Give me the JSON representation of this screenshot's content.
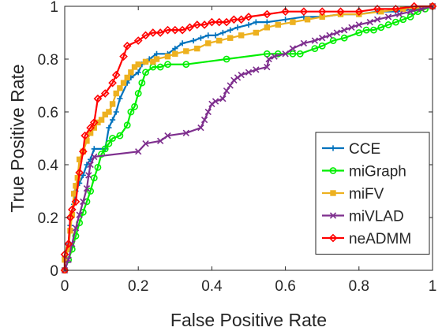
{
  "chart_data": {
    "type": "line",
    "title": "",
    "xlabel": "False Positive Rate",
    "ylabel": "True Positive Rate",
    "xlim": [
      0,
      1
    ],
    "ylim": [
      0,
      1
    ],
    "xticks": [
      "0",
      "0.2",
      "0.4",
      "0.6",
      "0.8",
      "1"
    ],
    "yticks": [
      "0",
      "0.2",
      "0.4",
      "0.6",
      "0.8",
      "1"
    ],
    "grid": false,
    "legend_position": "bottom-right",
    "series": [
      {
        "name": "CCE",
        "color": "#0072BD",
        "marker": "plus",
        "points": [
          [
            0,
            0
          ],
          [
            0,
            0.05
          ],
          [
            0.01,
            0.1
          ],
          [
            0.015,
            0.17
          ],
          [
            0.02,
            0.21
          ],
          [
            0.025,
            0.25
          ],
          [
            0.03,
            0.3
          ],
          [
            0.04,
            0.33
          ],
          [
            0.05,
            0.36
          ],
          [
            0.06,
            0.4
          ],
          [
            0.07,
            0.42
          ],
          [
            0.08,
            0.46
          ],
          [
            0.11,
            0.46
          ],
          [
            0.12,
            0.54
          ],
          [
            0.13,
            0.57
          ],
          [
            0.14,
            0.6
          ],
          [
            0.15,
            0.65
          ],
          [
            0.17,
            0.71
          ],
          [
            0.18,
            0.73
          ],
          [
            0.2,
            0.75
          ],
          [
            0.21,
            0.78
          ],
          [
            0.23,
            0.8
          ],
          [
            0.25,
            0.82
          ],
          [
            0.28,
            0.82
          ],
          [
            0.3,
            0.84
          ],
          [
            0.32,
            0.86
          ],
          [
            0.35,
            0.87
          ],
          [
            0.37,
            0.88
          ],
          [
            0.39,
            0.89
          ],
          [
            0.41,
            0.89
          ],
          [
            0.43,
            0.9
          ],
          [
            0.45,
            0.91
          ],
          [
            0.47,
            0.92
          ],
          [
            0.5,
            0.93
          ],
          [
            0.52,
            0.94
          ],
          [
            0.55,
            0.94
          ],
          [
            0.6,
            0.95
          ],
          [
            0.65,
            0.96
          ],
          [
            0.7,
            0.96
          ],
          [
            0.75,
            0.97
          ],
          [
            0.8,
            0.97
          ],
          [
            0.85,
            0.98
          ],
          [
            0.9,
            0.98
          ],
          [
            0.95,
            0.99
          ],
          [
            1,
            1
          ]
        ]
      },
      {
        "name": "miGraph",
        "color": "#00EE00",
        "marker": "circle",
        "points": [
          [
            0,
            0
          ],
          [
            0.01,
            0.04
          ],
          [
            0.02,
            0.08
          ],
          [
            0.03,
            0.13
          ],
          [
            0.04,
            0.18
          ],
          [
            0.05,
            0.22
          ],
          [
            0.06,
            0.26
          ],
          [
            0.07,
            0.3
          ],
          [
            0.08,
            0.35
          ],
          [
            0.09,
            0.39
          ],
          [
            0.1,
            0.44
          ],
          [
            0.11,
            0.46
          ],
          [
            0.12,
            0.48
          ],
          [
            0.13,
            0.5
          ],
          [
            0.15,
            0.51
          ],
          [
            0.17,
            0.55
          ],
          [
            0.18,
            0.6
          ],
          [
            0.19,
            0.62
          ],
          [
            0.2,
            0.67
          ],
          [
            0.21,
            0.71
          ],
          [
            0.22,
            0.75
          ],
          [
            0.24,
            0.77
          ],
          [
            0.26,
            0.77
          ],
          [
            0.28,
            0.78
          ],
          [
            0.33,
            0.78
          ],
          [
            0.44,
            0.8
          ],
          [
            0.55,
            0.82
          ],
          [
            0.58,
            0.82
          ],
          [
            0.62,
            0.82
          ],
          [
            0.64,
            0.82
          ],
          [
            0.68,
            0.84
          ],
          [
            0.7,
            0.85
          ],
          [
            0.73,
            0.87
          ],
          [
            0.76,
            0.88
          ],
          [
            0.8,
            0.9
          ],
          [
            0.82,
            0.91
          ],
          [
            0.84,
            0.91
          ],
          [
            0.86,
            0.92
          ],
          [
            0.88,
            0.93
          ],
          [
            0.9,
            0.94
          ],
          [
            0.92,
            0.95
          ],
          [
            0.94,
            0.96
          ],
          [
            0.96,
            0.98
          ],
          [
            0.98,
            0.99
          ],
          [
            1,
            1
          ]
        ]
      },
      {
        "name": "miFV",
        "color": "#EDB120",
        "marker": "square",
        "points": [
          [
            0,
            0
          ],
          [
            0,
            0.04
          ],
          [
            0.01,
            0.08
          ],
          [
            0.015,
            0.15
          ],
          [
            0.02,
            0.21
          ],
          [
            0.025,
            0.29
          ],
          [
            0.03,
            0.32
          ],
          [
            0.035,
            0.35
          ],
          [
            0.04,
            0.42
          ],
          [
            0.05,
            0.45
          ],
          [
            0.06,
            0.49
          ],
          [
            0.07,
            0.52
          ],
          [
            0.08,
            0.54
          ],
          [
            0.09,
            0.56
          ],
          [
            0.1,
            0.57
          ],
          [
            0.11,
            0.59
          ],
          [
            0.12,
            0.6
          ],
          [
            0.13,
            0.63
          ],
          [
            0.14,
            0.67
          ],
          [
            0.15,
            0.69
          ],
          [
            0.16,
            0.71
          ],
          [
            0.17,
            0.73
          ],
          [
            0.18,
            0.75
          ],
          [
            0.19,
            0.77
          ],
          [
            0.2,
            0.78
          ],
          [
            0.22,
            0.79
          ],
          [
            0.24,
            0.79
          ],
          [
            0.25,
            0.8
          ],
          [
            0.28,
            0.81
          ],
          [
            0.3,
            0.82
          ],
          [
            0.33,
            0.83
          ],
          [
            0.36,
            0.84
          ],
          [
            0.39,
            0.86
          ],
          [
            0.42,
            0.87
          ],
          [
            0.45,
            0.88
          ],
          [
            0.48,
            0.89
          ],
          [
            0.52,
            0.9
          ],
          [
            0.55,
            0.92
          ],
          [
            0.58,
            0.93
          ],
          [
            0.62,
            0.94
          ],
          [
            0.66,
            0.95
          ],
          [
            0.7,
            0.96
          ],
          [
            0.75,
            0.97
          ],
          [
            0.8,
            0.97
          ],
          [
            0.86,
            0.98
          ],
          [
            0.92,
            0.99
          ],
          [
            1,
            1
          ]
        ]
      },
      {
        "name": "miVLAD",
        "color": "#7E2F8E",
        "marker": "x",
        "points": [
          [
            0,
            0
          ],
          [
            0.01,
            0.04
          ],
          [
            0.02,
            0.1
          ],
          [
            0.03,
            0.16
          ],
          [
            0.04,
            0.21
          ],
          [
            0.05,
            0.26
          ],
          [
            0.06,
            0.31
          ],
          [
            0.065,
            0.36
          ],
          [
            0.07,
            0.4
          ],
          [
            0.08,
            0.43
          ],
          [
            0.2,
            0.45
          ],
          [
            0.22,
            0.48
          ],
          [
            0.26,
            0.49
          ],
          [
            0.28,
            0.51
          ],
          [
            0.33,
            0.52
          ],
          [
            0.37,
            0.54
          ],
          [
            0.38,
            0.57
          ],
          [
            0.39,
            0.6
          ],
          [
            0.4,
            0.63
          ],
          [
            0.41,
            0.64
          ],
          [
            0.43,
            0.65
          ],
          [
            0.44,
            0.68
          ],
          [
            0.45,
            0.7
          ],
          [
            0.46,
            0.72
          ],
          [
            0.47,
            0.73
          ],
          [
            0.48,
            0.74
          ],
          [
            0.5,
            0.75
          ],
          [
            0.52,
            0.76
          ],
          [
            0.55,
            0.77
          ],
          [
            0.555,
            0.8
          ],
          [
            0.57,
            0.81
          ],
          [
            0.6,
            0.82
          ],
          [
            0.62,
            0.84
          ],
          [
            0.65,
            0.86
          ],
          [
            0.68,
            0.87
          ],
          [
            0.7,
            0.88
          ],
          [
            0.72,
            0.89
          ],
          [
            0.74,
            0.9
          ],
          [
            0.76,
            0.91
          ],
          [
            0.78,
            0.92
          ],
          [
            0.8,
            0.93
          ],
          [
            0.83,
            0.94
          ],
          [
            0.85,
            0.95
          ],
          [
            0.88,
            0.96
          ],
          [
            0.91,
            0.97
          ],
          [
            0.94,
            0.98
          ],
          [
            0.97,
            0.99
          ],
          [
            1,
            1
          ]
        ]
      },
      {
        "name": "neADMM",
        "color": "#FF0000",
        "marker": "diamond",
        "points": [
          [
            0,
            0
          ],
          [
            0,
            0.06
          ],
          [
            0.01,
            0.1
          ],
          [
            0.015,
            0.2
          ],
          [
            0.02,
            0.23
          ],
          [
            0.03,
            0.26
          ],
          [
            0.04,
            0.37
          ],
          [
            0.05,
            0.45
          ],
          [
            0.055,
            0.51
          ],
          [
            0.07,
            0.54
          ],
          [
            0.08,
            0.56
          ],
          [
            0.09,
            0.65
          ],
          [
            0.11,
            0.67
          ],
          [
            0.13,
            0.71
          ],
          [
            0.14,
            0.74
          ],
          [
            0.16,
            0.81
          ],
          [
            0.17,
            0.85
          ],
          [
            0.2,
            0.87
          ],
          [
            0.22,
            0.89
          ],
          [
            0.24,
            0.9
          ],
          [
            0.26,
            0.9
          ],
          [
            0.28,
            0.91
          ],
          [
            0.3,
            0.91
          ],
          [
            0.32,
            0.91
          ],
          [
            0.34,
            0.92
          ],
          [
            0.36,
            0.93
          ],
          [
            0.38,
            0.93
          ],
          [
            0.4,
            0.94
          ],
          [
            0.42,
            0.94
          ],
          [
            0.44,
            0.94
          ],
          [
            0.46,
            0.95
          ],
          [
            0.48,
            0.95
          ],
          [
            0.5,
            0.96
          ],
          [
            0.55,
            0.97
          ],
          [
            0.6,
            0.98
          ],
          [
            0.65,
            0.98
          ],
          [
            0.7,
            0.98
          ],
          [
            0.75,
            0.98
          ],
          [
            0.8,
            0.98
          ],
          [
            0.85,
            0.99
          ],
          [
            0.9,
            0.99
          ],
          [
            0.95,
            1
          ],
          [
            1,
            1
          ]
        ]
      }
    ]
  }
}
